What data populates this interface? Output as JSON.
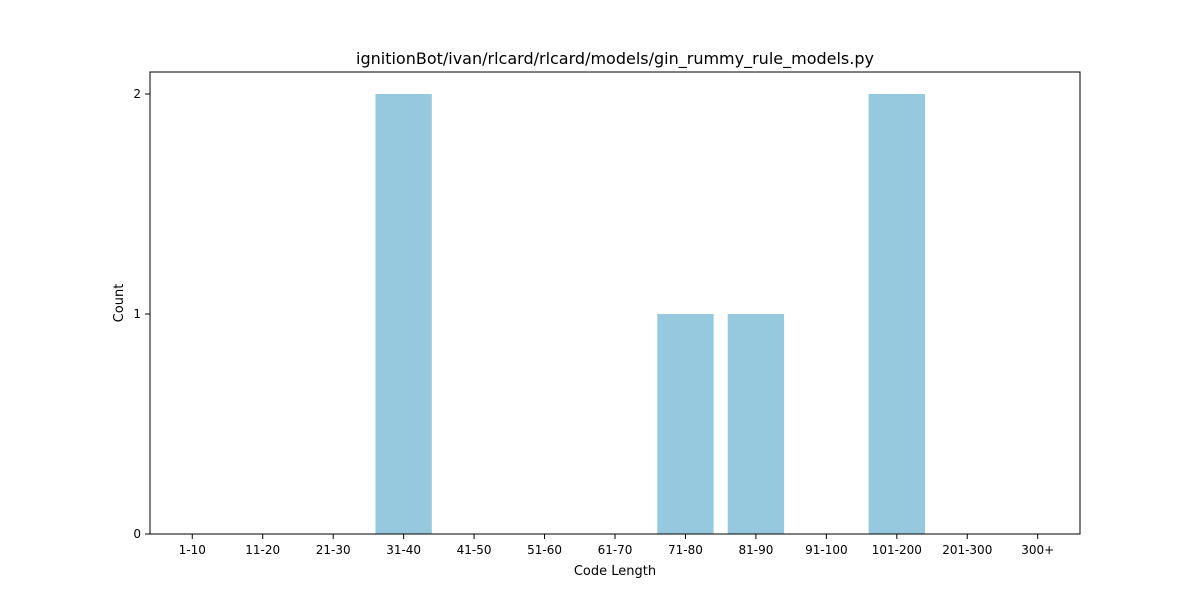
{
  "chart_data": {
    "type": "bar",
    "title": "ignitionBot/ivan/rlcard/rlcard/models/gin_rummy_rule_models.py",
    "xlabel": "Code Length",
    "ylabel": "Count",
    "categories": [
      "1-10",
      "11-20",
      "21-30",
      "31-40",
      "41-50",
      "51-60",
      "61-70",
      "71-80",
      "81-90",
      "91-100",
      "101-200",
      "201-300",
      "300+"
    ],
    "values": [
      0,
      0,
      0,
      2,
      0,
      0,
      0,
      1,
      1,
      0,
      2,
      0,
      0
    ],
    "ylim": [
      0,
      2.1
    ],
    "yticks": [
      0,
      1,
      2
    ],
    "grid": false,
    "bar_color": "#96c9dd"
  }
}
